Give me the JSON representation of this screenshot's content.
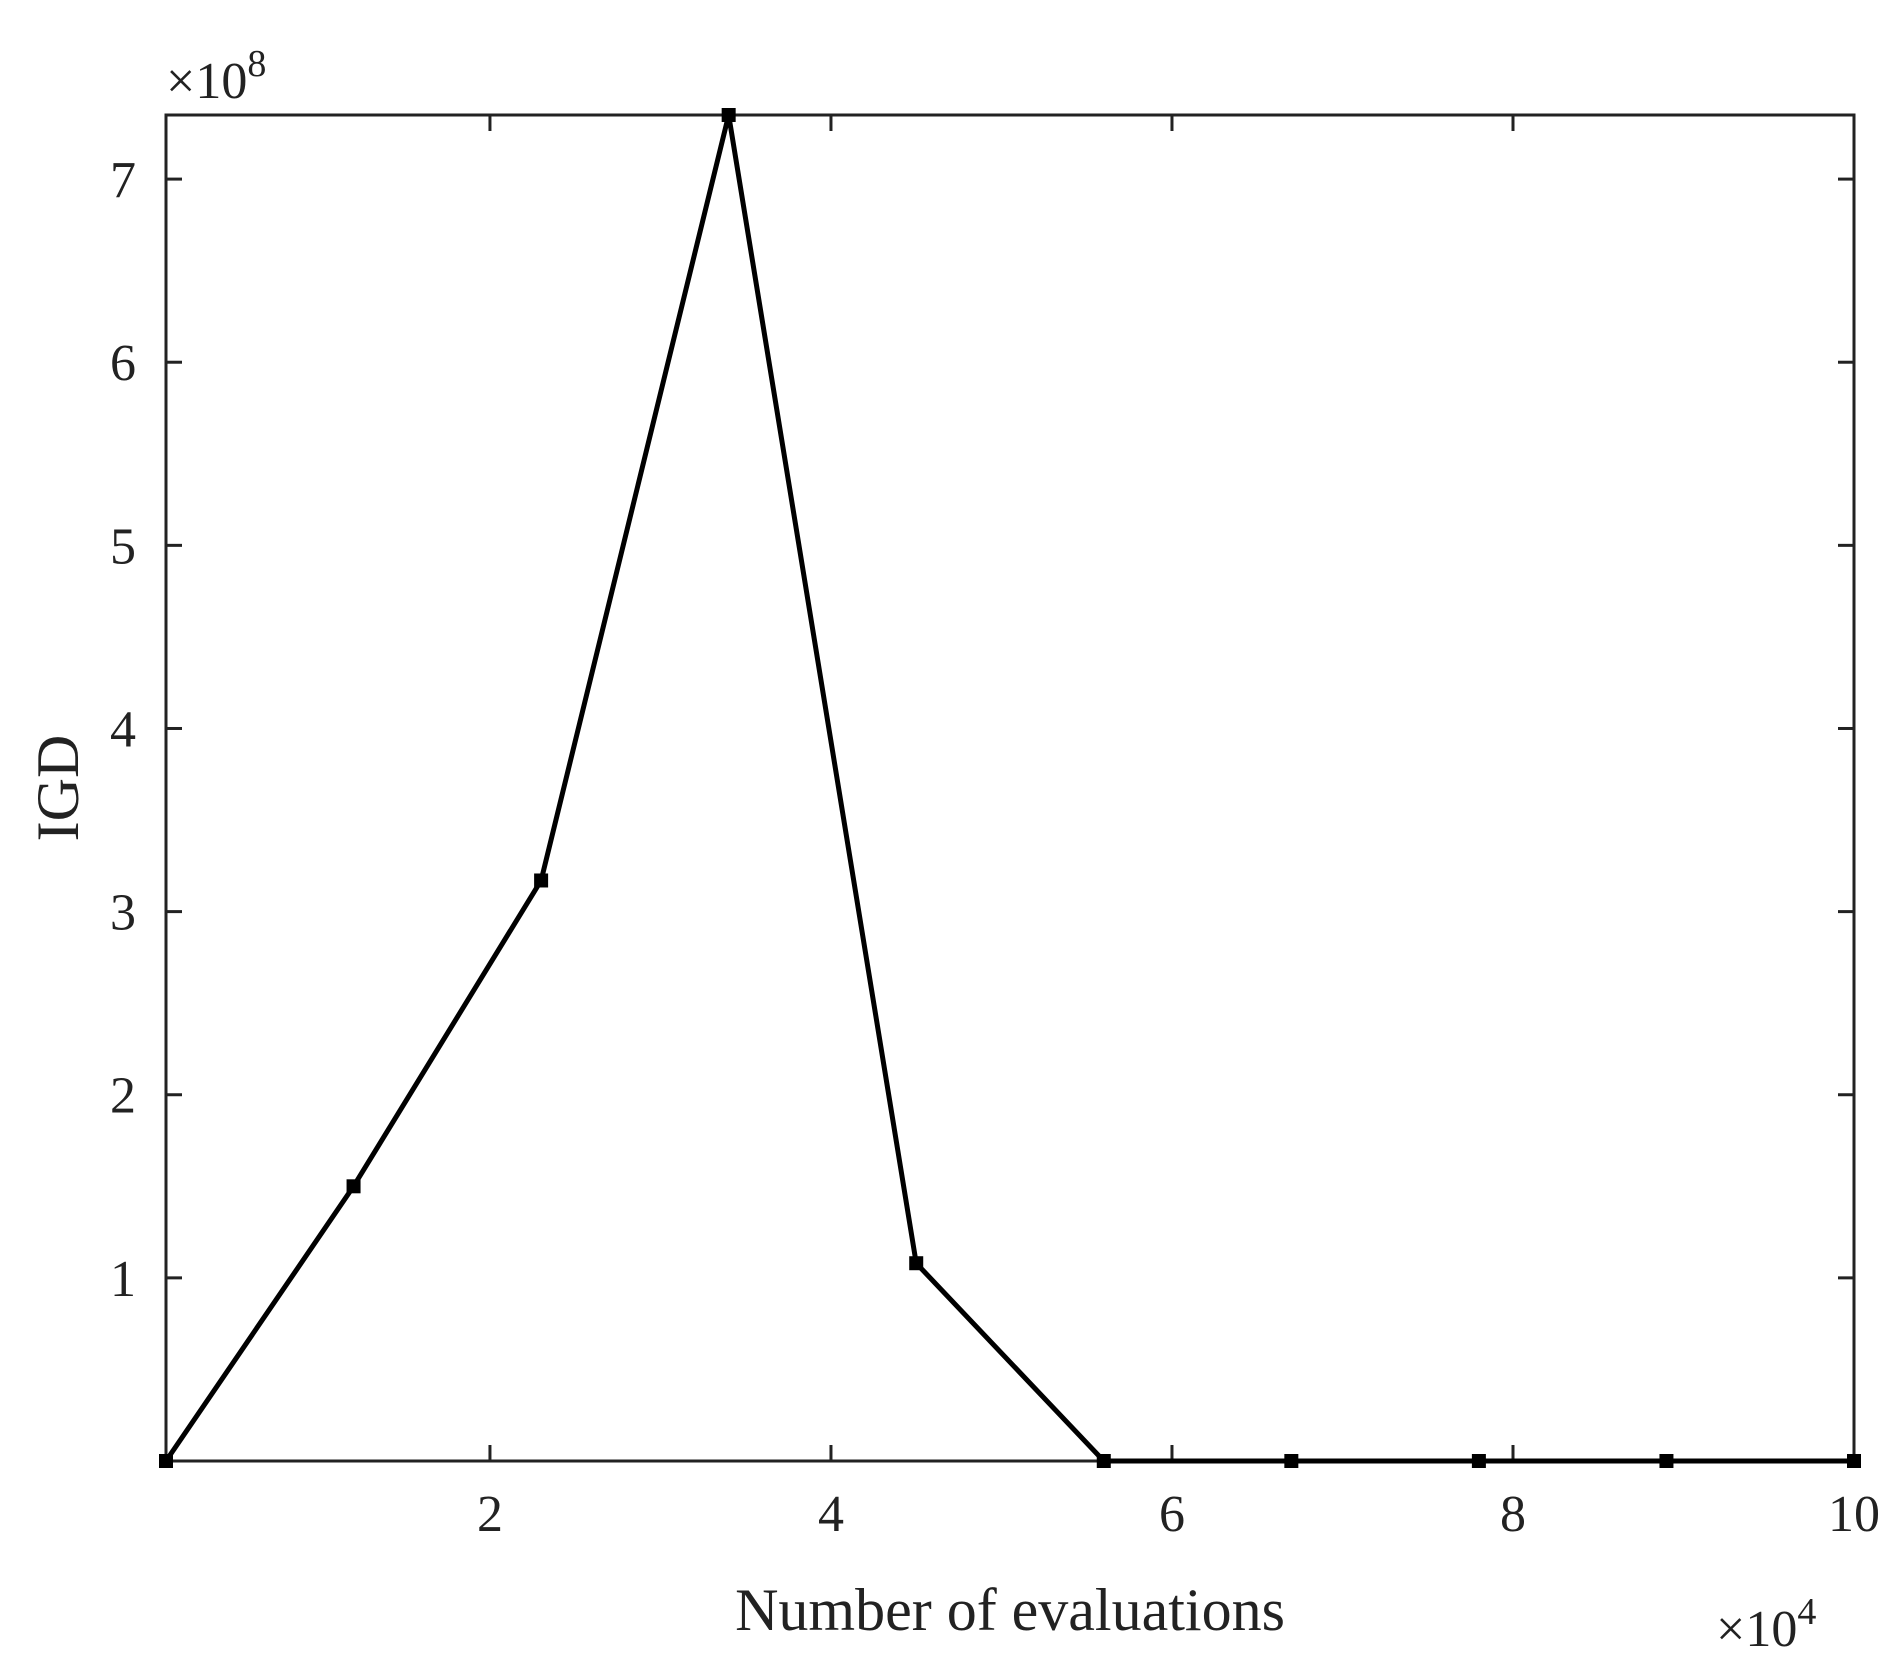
{
  "chart_data": {
    "type": "line",
    "title": "",
    "xlabel": "Number of evaluations",
    "ylabel": "IGD",
    "x_exponent_label": "×10",
    "x_exponent_power": "4",
    "y_exponent_label": "×10",
    "y_exponent_power": "8",
    "xlim": [
      0.1,
      10
    ],
    "ylim": [
      0,
      7.35
    ],
    "x_ticks": [
      2,
      4,
      6,
      8,
      10
    ],
    "x_tick_labels": [
      "2",
      "4",
      "6",
      "8",
      "10"
    ],
    "y_ticks": [
      1,
      2,
      3,
      4,
      5,
      6,
      7
    ],
    "y_tick_labels": [
      "1",
      "2",
      "3",
      "4",
      "5",
      "6",
      "7"
    ],
    "grid": false,
    "line_color": "#000000",
    "series": [
      {
        "x": [
          0.1,
          1.2,
          2.3,
          3.4,
          4.5,
          5.6,
          6.7,
          7.8,
          8.9,
          10
        ],
        "y": [
          0,
          1.5,
          3.17,
          7.35,
          1.08,
          0,
          0,
          0,
          0,
          0
        ]
      }
    ]
  }
}
